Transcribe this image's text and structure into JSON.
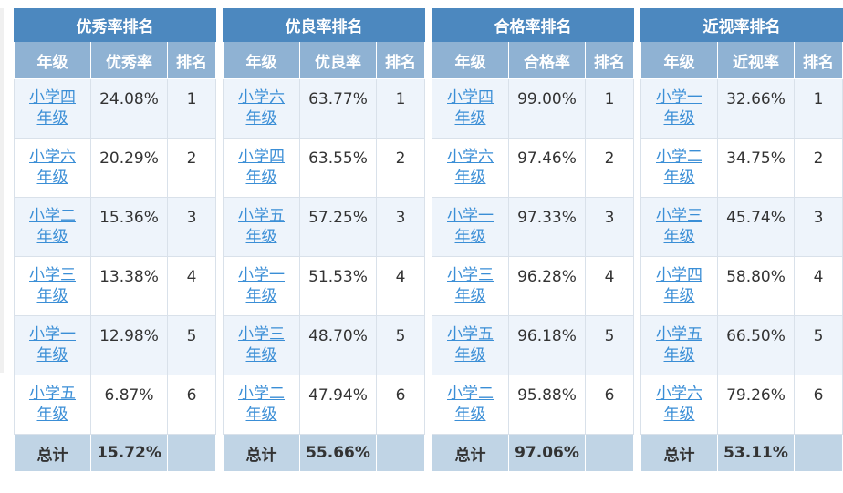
{
  "panels": [
    {
      "title": "优秀率排名",
      "headers": [
        "年级",
        "优秀率",
        "排名"
      ],
      "rows": [
        {
          "grade": "小学四年级",
          "rate": "24.08%",
          "rank": "1"
        },
        {
          "grade": "小学六年级",
          "rate": "20.29%",
          "rank": "2"
        },
        {
          "grade": "小学二年级",
          "rate": "15.36%",
          "rank": "3"
        },
        {
          "grade": "小学三年级",
          "rate": "13.38%",
          "rank": "4"
        },
        {
          "grade": "小学一年级",
          "rate": "12.98%",
          "rank": "5"
        },
        {
          "grade": "小学五年级",
          "rate": "6.87%",
          "rank": "6"
        }
      ],
      "total_label": "总计",
      "total_value": "15.72%"
    },
    {
      "title": "优良率排名",
      "headers": [
        "年级",
        "优良率",
        "排名"
      ],
      "rows": [
        {
          "grade": "小学六年级",
          "rate": "63.77%",
          "rank": "1"
        },
        {
          "grade": "小学四年级",
          "rate": "63.55%",
          "rank": "2"
        },
        {
          "grade": "小学五年级",
          "rate": "57.25%",
          "rank": "3"
        },
        {
          "grade": "小学一年级",
          "rate": "51.53%",
          "rank": "4"
        },
        {
          "grade": "小学三年级",
          "rate": "48.70%",
          "rank": "5"
        },
        {
          "grade": "小学二年级",
          "rate": "47.94%",
          "rank": "6"
        }
      ],
      "total_label": "总计",
      "total_value": "55.66%"
    },
    {
      "title": "合格率排名",
      "headers": [
        "年级",
        "合格率",
        "排名"
      ],
      "rows": [
        {
          "grade": "小学四年级",
          "rate": "99.00%",
          "rank": "1"
        },
        {
          "grade": "小学六年级",
          "rate": "97.46%",
          "rank": "2"
        },
        {
          "grade": "小学一年级",
          "rate": "97.33%",
          "rank": "3"
        },
        {
          "grade": "小学三年级",
          "rate": "96.28%",
          "rank": "4"
        },
        {
          "grade": "小学五年级",
          "rate": "96.18%",
          "rank": "5"
        },
        {
          "grade": "小学二年级",
          "rate": "95.88%",
          "rank": "6"
        }
      ],
      "total_label": "总计",
      "total_value": "97.06%"
    },
    {
      "title": "近视率排名",
      "headers": [
        "年级",
        "近视率",
        "排名"
      ],
      "rows": [
        {
          "grade": "小学一年级",
          "rate": "32.66%",
          "rank": "1"
        },
        {
          "grade": "小学二年级",
          "rate": "34.75%",
          "rank": "2"
        },
        {
          "grade": "小学三年级",
          "rate": "45.74%",
          "rank": "3"
        },
        {
          "grade": "小学四年级",
          "rate": "58.80%",
          "rank": "4"
        },
        {
          "grade": "小学五年级",
          "rate": "66.50%",
          "rank": "5"
        },
        {
          "grade": "小学六年级",
          "rate": "79.26%",
          "rank": "6"
        }
      ],
      "total_label": "总计",
      "total_value": "53.11%"
    }
  ],
  "colors": {
    "title_bg": "#4c88bf",
    "header_bg": "#8fb2d3",
    "row_alt_bg": "#eef4fb",
    "total_bg": "#c0d4e5",
    "link": "#3a8ed6"
  }
}
